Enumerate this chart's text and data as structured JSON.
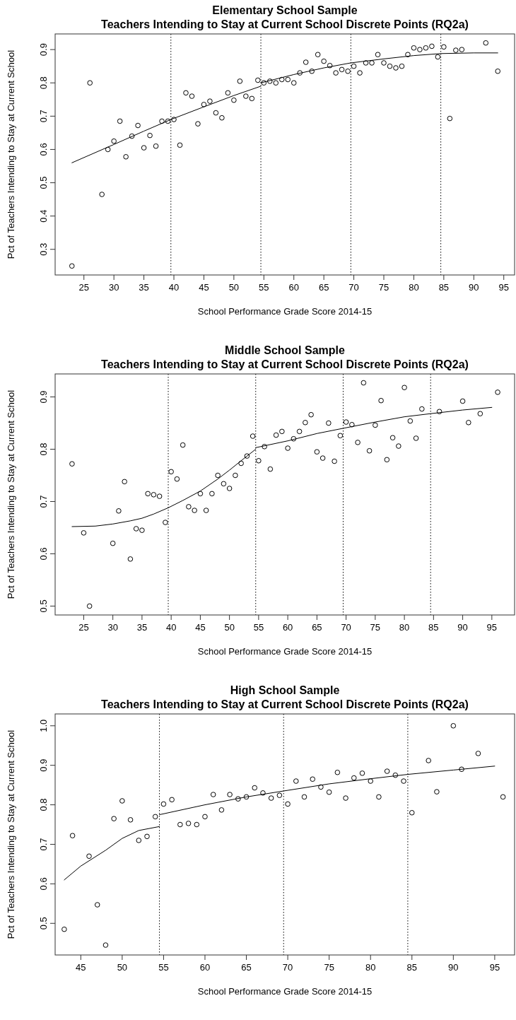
{
  "chart_data": [
    {
      "type": "scatter",
      "title": "Elementary School Sample",
      "subtitle": "Teachers Intending to Stay at Current School Discrete Points (RQ2a)",
      "xlabel": "School Performance Grade Score 2014-15",
      "ylabel": "Pct of Teachers Intending to Stay at Current School",
      "xlim": [
        20.2,
        96.8
      ],
      "ylim": [
        0.223,
        0.947
      ],
      "xticks": [
        25,
        30,
        35,
        40,
        45,
        50,
        55,
        60,
        65,
        70,
        75,
        80,
        85,
        90,
        95
      ],
      "yticks": [
        0.3,
        0.4,
        0.5,
        0.6,
        0.7,
        0.8,
        0.9
      ],
      "grid": false,
      "series": [
        {
          "color": "#000000",
          "marker": "circle",
          "x": [
            23,
            26,
            28,
            29,
            30,
            31,
            32,
            33,
            34,
            35,
            36,
            37,
            38,
            39,
            40,
            41,
            42,
            43,
            44,
            45,
            46,
            47,
            48,
            49,
            50,
            51,
            52,
            53,
            54,
            55,
            56,
            57,
            58,
            59,
            60,
            61,
            62,
            63,
            64,
            65,
            66,
            67,
            68,
            69,
            70,
            71,
            72,
            73,
            74,
            75,
            76,
            77,
            78,
            79,
            80,
            81,
            82,
            83,
            84,
            85,
            86,
            87,
            88,
            92,
            94
          ],
          "values": [
            0.25,
            0.8,
            0.465,
            0.6,
            0.625,
            0.685,
            0.578,
            0.64,
            0.672,
            0.605,
            0.642,
            0.61,
            0.685,
            0.685,
            0.69,
            0.613,
            0.77,
            0.76,
            0.677,
            0.735,
            0.745,
            0.71,
            0.695,
            0.77,
            0.748,
            0.805,
            0.76,
            0.753,
            0.808,
            0.8,
            0.805,
            0.8,
            0.81,
            0.81,
            0.8,
            0.83,
            0.862,
            0.835,
            0.885,
            0.865,
            0.852,
            0.83,
            0.84,
            0.835,
            0.85,
            0.83,
            0.86,
            0.86,
            0.885,
            0.86,
            0.85,
            0.845,
            0.85,
            0.885,
            0.905,
            0.9,
            0.905,
            0.91,
            0.878,
            0.908,
            0.693,
            0.898,
            0.9,
            0.92,
            0.835
          ]
        },
        {
          "type": "line",
          "color": "#000000",
          "line_style": "solid",
          "x": [
            23,
            30,
            35,
            39.5,
            45,
            50,
            54.5
          ],
          "values": [
            0.56,
            0.615,
            0.655,
            0.69,
            0.728,
            0.762,
            0.79
          ]
        },
        {
          "type": "line",
          "color": "#000000",
          "line_style": "solid",
          "x": [
            54.5,
            60,
            65,
            69.5,
            75,
            80,
            84.5,
            90,
            94
          ],
          "values": [
            0.8,
            0.825,
            0.845,
            0.86,
            0.872,
            0.882,
            0.888,
            0.89,
            0.89
          ]
        }
      ],
      "ref_lines": [
        {
          "axis": "x",
          "value": 39.5,
          "line_style": "dotted",
          "color": "#000000"
        },
        {
          "axis": "x",
          "value": 54.5,
          "line_style": "dotted",
          "color": "#000000"
        },
        {
          "axis": "x",
          "value": 69.5,
          "line_style": "dotted",
          "color": "#000000"
        },
        {
          "axis": "x",
          "value": 84.5,
          "line_style": "dotted",
          "color": "#000000"
        }
      ]
    },
    {
      "type": "scatter",
      "title": "Middle School Sample",
      "subtitle": "Teachers Intending to Stay at Current School Discrete Points (RQ2a)",
      "xlabel": "School Performance Grade Score 2014-15",
      "ylabel": "Pct of Teachers Intending to Stay at Current School",
      "xlim": [
        20.1,
        98.9
      ],
      "ylim": [
        0.483,
        0.944
      ],
      "xticks": [
        25,
        30,
        35,
        40,
        45,
        50,
        55,
        60,
        65,
        70,
        75,
        80,
        85,
        90,
        95
      ],
      "yticks": [
        0.5,
        0.6,
        0.7,
        0.8,
        0.9
      ],
      "grid": false,
      "series": [
        {
          "color": "#000000",
          "marker": "circle",
          "x": [
            23,
            25,
            26,
            30,
            31,
            32,
            33,
            34,
            35,
            36,
            37,
            38,
            39,
            40,
            41,
            42,
            43,
            44,
            45,
            46,
            47,
            48,
            49,
            50,
            51,
            52,
            53,
            54,
            55,
            56,
            57,
            58,
            59,
            60,
            61,
            62,
            63,
            64,
            65,
            66,
            67,
            68,
            69,
            70,
            71,
            72,
            73,
            74,
            75,
            76,
            77,
            78,
            79,
            80,
            81,
            82,
            83,
            86,
            90,
            91,
            93,
            96
          ],
          "values": [
            0.772,
            0.64,
            0.5,
            0.62,
            0.682,
            0.738,
            0.59,
            0.648,
            0.645,
            0.715,
            0.713,
            0.71,
            0.66,
            0.757,
            0.743,
            0.808,
            0.69,
            0.683,
            0.715,
            0.683,
            0.715,
            0.75,
            0.734,
            0.725,
            0.75,
            0.773,
            0.787,
            0.825,
            0.778,
            0.805,
            0.762,
            0.827,
            0.834,
            0.802,
            0.82,
            0.834,
            0.851,
            0.866,
            0.795,
            0.783,
            0.85,
            0.777,
            0.826,
            0.852,
            0.847,
            0.813,
            0.927,
            0.797,
            0.846,
            0.893,
            0.78,
            0.822,
            0.806,
            0.918,
            0.854,
            0.821,
            0.877,
            0.872,
            0.892,
            0.851,
            0.868,
            0.909
          ]
        },
        {
          "type": "line",
          "color": "#000000",
          "line_style": "solid",
          "x": [
            23,
            27,
            30,
            33,
            35,
            37,
            39.5,
            42,
            45,
            48,
            50,
            52,
            54.5
          ],
          "values": [
            0.652,
            0.653,
            0.657,
            0.663,
            0.668,
            0.676,
            0.688,
            0.702,
            0.72,
            0.743,
            0.76,
            0.778,
            0.8
          ]
        },
        {
          "type": "line",
          "color": "#000000",
          "line_style": "solid",
          "x": [
            54.5,
            60,
            65,
            69.5,
            75,
            80,
            84.5,
            90,
            95
          ],
          "values": [
            0.803,
            0.816,
            0.83,
            0.84,
            0.852,
            0.862,
            0.868,
            0.875,
            0.88
          ]
        }
      ],
      "ref_lines": [
        {
          "axis": "x",
          "value": 39.5,
          "line_style": "dotted",
          "color": "#000000"
        },
        {
          "axis": "x",
          "value": 54.5,
          "line_style": "dotted",
          "color": "#000000"
        },
        {
          "axis": "x",
          "value": 69.5,
          "line_style": "dotted",
          "color": "#000000"
        },
        {
          "axis": "x",
          "value": 84.5,
          "line_style": "dotted",
          "color": "#000000"
        }
      ]
    },
    {
      "type": "scatter",
      "title": "High School Sample",
      "subtitle": "Teachers Intending to Stay at Current School Discrete Points (RQ2a)",
      "xlabel": "School Performance Grade Score 2014-15",
      "ylabel": "Pct of Teachers Intending to Stay at Current School",
      "xlim": [
        41.9,
        97.4
      ],
      "ylim": [
        0.42,
        1.03
      ],
      "xticks": [
        45,
        50,
        55,
        60,
        65,
        70,
        75,
        80,
        85,
        90,
        95
      ],
      "yticks": [
        0.5,
        0.6,
        0.7,
        0.8,
        0.9,
        {
          "value": 1,
          "label": "1.0"
        }
      ],
      "grid": false,
      "series": [
        {
          "color": "#000000",
          "marker": "circle",
          "x": [
            43,
            44,
            46,
            47,
            48,
            49,
            50,
            51,
            52,
            53,
            54,
            55,
            56,
            57,
            58,
            59,
            60,
            61,
            62,
            63,
            64,
            65,
            66,
            67,
            68,
            69,
            70,
            71,
            72,
            73,
            74,
            75,
            76,
            77,
            78,
            79,
            80,
            81,
            82,
            83,
            84,
            85,
            87,
            88,
            90,
            91,
            93,
            96
          ],
          "values": [
            0.485,
            0.722,
            0.67,
            0.547,
            0.445,
            0.765,
            0.81,
            0.762,
            0.71,
            0.72,
            0.77,
            0.802,
            0.813,
            0.75,
            0.753,
            0.75,
            0.77,
            0.826,
            0.787,
            0.826,
            0.815,
            0.82,
            0.843,
            0.83,
            0.817,
            0.824,
            0.802,
            0.86,
            0.82,
            0.865,
            0.845,
            0.832,
            0.882,
            0.817,
            0.868,
            0.88,
            0.86,
            0.82,
            0.885,
            0.875,
            0.86,
            0.78,
            0.912,
            0.833,
            1,
            0.89,
            0.93,
            0.82
          ]
        },
        {
          "type": "line",
          "color": "#000000",
          "line_style": "solid",
          "x": [
            43,
            45,
            48,
            50,
            52,
            54.5
          ],
          "values": [
            0.61,
            0.645,
            0.685,
            0.715,
            0.735,
            0.745
          ]
        },
        {
          "type": "line",
          "color": "#000000",
          "line_style": "solid",
          "x": [
            54.5,
            60,
            65,
            69.5,
            75,
            80,
            84.5,
            90,
            95
          ],
          "values": [
            0.775,
            0.8,
            0.82,
            0.835,
            0.853,
            0.866,
            0.877,
            0.888,
            0.898
          ]
        }
      ],
      "ref_lines": [
        {
          "axis": "x",
          "value": 54.5,
          "line_style": "dotted",
          "color": "#000000"
        },
        {
          "axis": "x",
          "value": 69.5,
          "line_style": "dotted",
          "color": "#000000"
        },
        {
          "axis": "x",
          "value": 84.5,
          "line_style": "dotted",
          "color": "#000000"
        }
      ]
    }
  ]
}
